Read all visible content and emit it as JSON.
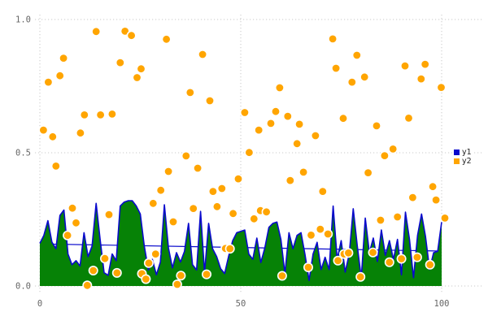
{
  "chart": {
    "background": "#ffffff",
    "grid_color": "#c9c9c9",
    "tick_label_color": "#666666",
    "legend": {
      "position": "right-middle",
      "entries": [
        "y1",
        "y2"
      ]
    }
  },
  "chart_data": {
    "type": "mixed",
    "title": "",
    "xlabel": "",
    "ylabel": "",
    "xlim": [
      0,
      100
    ],
    "ylim": [
      0,
      1
    ],
    "grid": "dotted",
    "x_ticks": [
      {
        "v": 0,
        "label": "0"
      },
      {
        "v": 50,
        "label": "50"
      },
      {
        "v": 100,
        "label": "100"
      }
    ],
    "y_ticks": [
      {
        "v": 0,
        "label": "0.0"
      },
      {
        "v": 0.5,
        "label": "0.5"
      },
      {
        "v": 1,
        "label": "1.0"
      }
    ],
    "series": [
      {
        "name": "y1",
        "type": "area",
        "fill_color": "#068206",
        "line_color": "#0909cc",
        "x_start": 0,
        "x_step": 1,
        "values": [
          0.16,
          0.19,
          0.245,
          0.165,
          0.14,
          0.265,
          0.285,
          0.12,
          0.08,
          0.095,
          0.075,
          0.2,
          0.11,
          0.15,
          0.31,
          0.175,
          0.05,
          0.04,
          0.12,
          0.095,
          0.3,
          0.315,
          0.32,
          0.32,
          0.3,
          0.27,
          0.15,
          0.06,
          0.1,
          0.042,
          0.09,
          0.305,
          0.143,
          0.068,
          0.125,
          0.09,
          0.13,
          0.235,
          0.08,
          0.06,
          0.28,
          0.05,
          0.235,
          0.14,
          0.11,
          0.065,
          0.047,
          0.113,
          0.17,
          0.2,
          0.205,
          0.21,
          0.12,
          0.1,
          0.18,
          0.088,
          0.143,
          0.22,
          0.235,
          0.24,
          0.174,
          0.047,
          0.2,
          0.14,
          0.19,
          0.2,
          0.118,
          0.021,
          0.12,
          0.164,
          0.062,
          0.108,
          0.062,
          0.3,
          0.1,
          0.17,
          0.052,
          0.12,
          0.29,
          0.15,
          0.03,
          0.255,
          0.125,
          0.18,
          0.092,
          0.21,
          0.115,
          0.17,
          0.1,
          0.175,
          0.042,
          0.277,
          0.174,
          0.031,
          0.19,
          0.27,
          0.185,
          0.062,
          0.125,
          0.13,
          0.24
        ]
      },
      {
        "name": "y1_trend",
        "type": "line",
        "color": "#0909cc",
        "points": [
          [
            0,
            0.158
          ],
          [
            100,
            0.131
          ]
        ]
      },
      {
        "name": "y2",
        "type": "scatter",
        "color": "#ffa500",
        "marker_edge": "#ffffff",
        "points": [
          [
            0.9,
            0.585
          ],
          [
            2.1,
            0.765
          ],
          [
            3.2,
            0.56
          ],
          [
            4.0,
            0.45
          ],
          [
            5.0,
            0.789
          ],
          [
            5.9,
            0.855
          ],
          [
            6.9,
            0.19
          ],
          [
            8.1,
            0.292
          ],
          [
            9.0,
            0.237
          ],
          [
            10.1,
            0.574
          ],
          [
            11.1,
            0.642
          ],
          [
            11.8,
            0.002
          ],
          [
            13.3,
            0.058
          ],
          [
            14.0,
            0.955
          ],
          [
            15.1,
            0.642
          ],
          [
            16.2,
            0.103
          ],
          [
            17.2,
            0.268
          ],
          [
            18.0,
            0.645
          ],
          [
            19.2,
            0.049
          ],
          [
            20.0,
            0.838
          ],
          [
            21.2,
            0.956
          ],
          [
            22.8,
            0.94
          ],
          [
            24.2,
            0.782
          ],
          [
            25.2,
            0.815
          ],
          [
            25.4,
            0.046
          ],
          [
            26.4,
            0.026
          ],
          [
            27.1,
            0.086
          ],
          [
            28.2,
            0.31
          ],
          [
            28.8,
            0.12
          ],
          [
            30.1,
            0.359
          ],
          [
            31.5,
            0.926
          ],
          [
            32.0,
            0.43
          ],
          [
            33.2,
            0.241
          ],
          [
            34.2,
            0.006
          ],
          [
            35.1,
            0.039
          ],
          [
            36.4,
            0.488
          ],
          [
            37.4,
            0.726
          ],
          [
            38.2,
            0.291
          ],
          [
            39.3,
            0.442
          ],
          [
            40.5,
            0.869
          ],
          [
            41.5,
            0.044
          ],
          [
            42.3,
            0.695
          ],
          [
            43.1,
            0.355
          ],
          [
            44.1,
            0.298
          ],
          [
            45.3,
            0.366
          ],
          [
            46.2,
            0.141
          ],
          [
            47.3,
            0.14
          ],
          [
            48.1,
            0.272
          ],
          [
            49.4,
            0.402
          ],
          [
            51.0,
            0.651
          ],
          [
            52.1,
            0.501
          ],
          [
            53.3,
            0.252
          ],
          [
            54.5,
            0.585
          ],
          [
            54.9,
            0.283
          ],
          [
            56.4,
            0.278
          ],
          [
            57.5,
            0.61
          ],
          [
            58.7,
            0.655
          ],
          [
            59.7,
            0.744
          ],
          [
            60.3,
            0.038
          ],
          [
            61.7,
            0.637
          ],
          [
            62.3,
            0.396
          ],
          [
            64.0,
            0.534
          ],
          [
            64.6,
            0.607
          ],
          [
            65.6,
            0.427
          ],
          [
            66.8,
            0.07
          ],
          [
            67.5,
            0.191
          ],
          [
            68.6,
            0.564
          ],
          [
            69.8,
            0.213
          ],
          [
            70.4,
            0.355
          ],
          [
            71.7,
            0.195
          ],
          [
            72.9,
            0.927
          ],
          [
            73.7,
            0.817
          ],
          [
            74.2,
            0.095
          ],
          [
            75.5,
            0.629
          ],
          [
            75.7,
            0.12
          ],
          [
            76.8,
            0.124
          ],
          [
            77.7,
            0.765
          ],
          [
            78.9,
            0.866
          ],
          [
            79.8,
            0.034
          ],
          [
            80.8,
            0.784
          ],
          [
            81.7,
            0.425
          ],
          [
            82.9,
            0.126
          ],
          [
            83.8,
            0.601
          ],
          [
            84.8,
            0.247
          ],
          [
            85.8,
            0.489
          ],
          [
            87.0,
            0.089
          ],
          [
            87.9,
            0.514
          ],
          [
            89.0,
            0.259
          ],
          [
            90.0,
            0.102
          ],
          [
            90.9,
            0.826
          ],
          [
            91.8,
            0.63
          ],
          [
            92.8,
            0.332
          ],
          [
            93.9,
            0.108
          ],
          [
            94.9,
            0.777
          ],
          [
            95.9,
            0.832
          ],
          [
            97.1,
            0.08
          ],
          [
            97.8,
            0.373
          ],
          [
            98.6,
            0.323
          ],
          [
            99.9,
            0.745
          ],
          [
            100.8,
            0.255
          ]
        ]
      }
    ],
    "legend_position": "right-middle"
  }
}
